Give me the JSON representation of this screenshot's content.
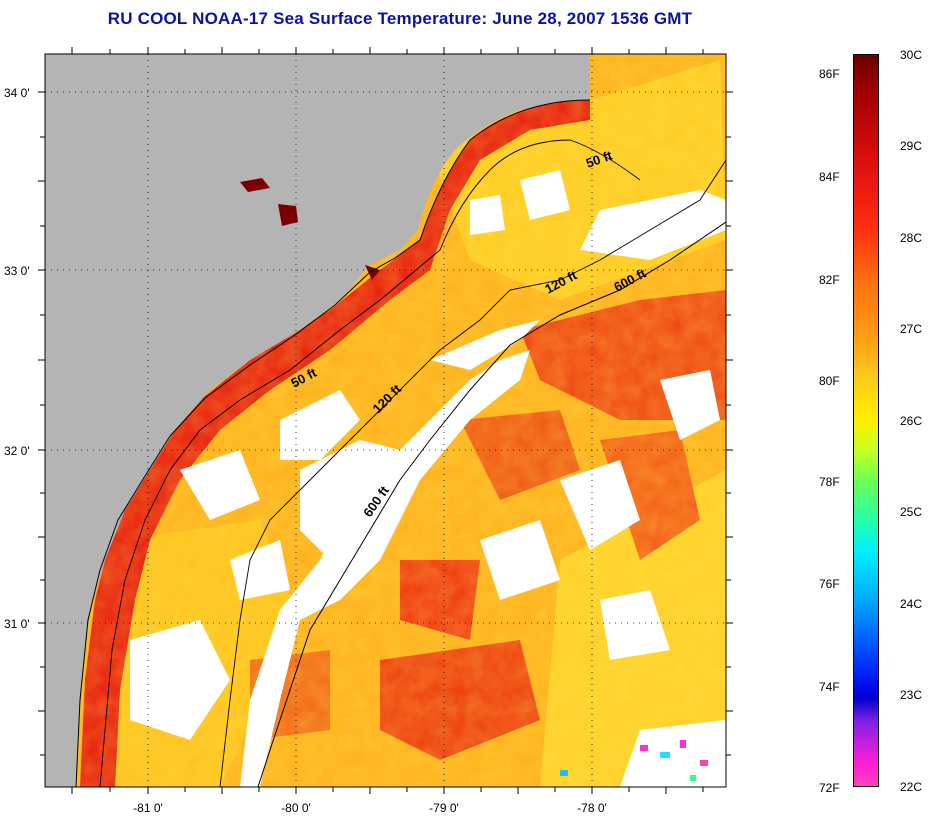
{
  "title": "RU COOL  NOAA-17  Sea Surface Temperature:  June 28, 2007 1536 GMT",
  "map": {
    "lat_labels": [
      "34 0'",
      "33 0'",
      "32 0'",
      "31 0'"
    ],
    "lon_labels": [
      "-81 0'",
      "-80 0'",
      "-79 0'",
      "-78 0'"
    ],
    "isobaths": {
      "shallow": "50 ft",
      "shelf_mid": "120 ft",
      "shelf_break": "600 ft"
    },
    "colors": {
      "land": "#b4b4b4",
      "cloud": "#ffffff",
      "warm_water": "#ffa81c",
      "hot_water": "#e82010",
      "cool_water": "#ffd020"
    }
  },
  "colorbar": {
    "fahrenheit": [
      "86F",
      "84F",
      "82F",
      "80F",
      "78F",
      "76F",
      "74F",
      "72F"
    ],
    "celsius": [
      "30C",
      "29C",
      "28C",
      "27C",
      "26C",
      "25C",
      "24C",
      "23C",
      "22C"
    ]
  }
}
